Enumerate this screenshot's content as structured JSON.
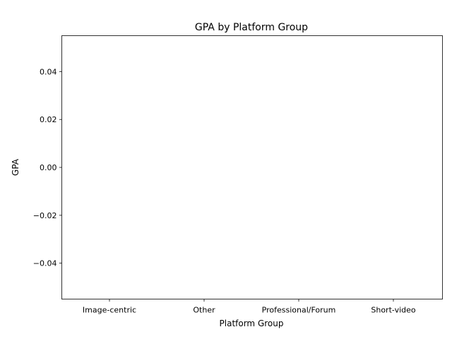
{
  "chart_data": {
    "type": "bar",
    "title": "GPA by Platform Group",
    "xlabel": "Platform Group",
    "ylabel": "GPA",
    "categories": [
      "Image-centric",
      "Other",
      "Professional/Forum",
      "Short-video"
    ],
    "values": [
      0,
      0,
      0,
      0
    ],
    "ylim": [
      -0.055,
      0.055
    ],
    "yticks": [
      -0.04,
      -0.02,
      0.0,
      0.02,
      0.04
    ],
    "ytick_labels": [
      "−0.04",
      "−0.02",
      "0.00",
      "0.02",
      "0.04"
    ],
    "grid": false,
    "legend": "none",
    "colors": {
      "bar": "#1f77b4",
      "axes": "#000000",
      "background": "#ffffff"
    }
  }
}
